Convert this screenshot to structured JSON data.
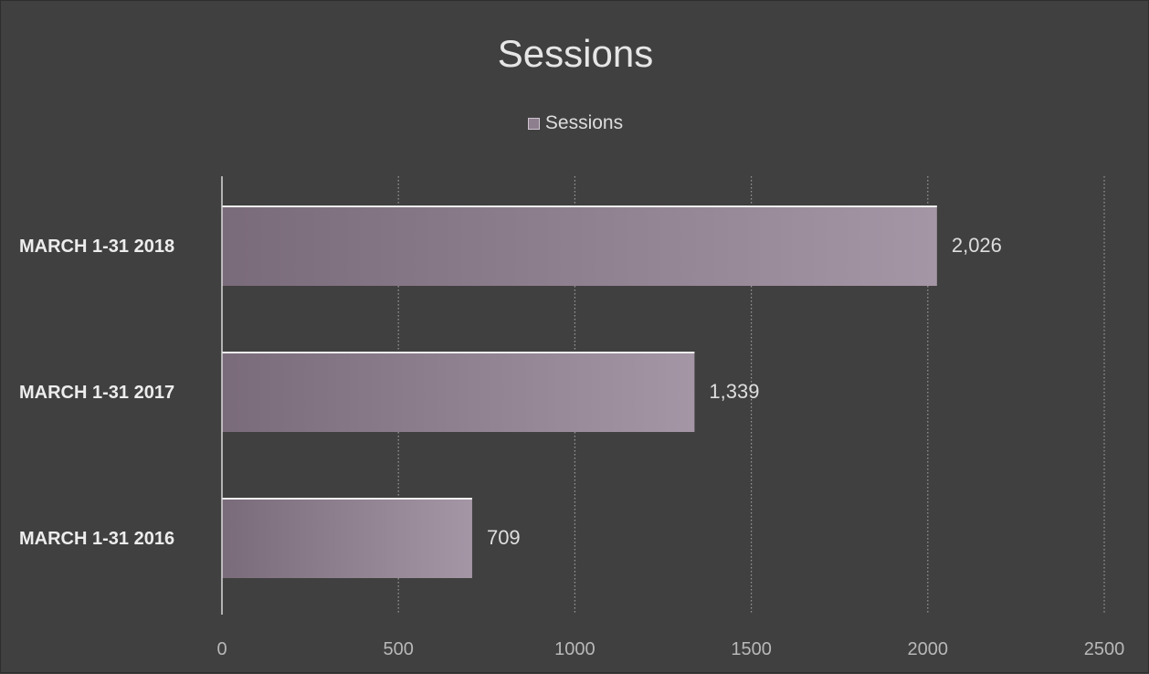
{
  "chart_data": {
    "type": "bar",
    "orientation": "horizontal",
    "title": "Sessions",
    "categories": [
      "MARCH 1-31 2018",
      "MARCH 1-31 2017",
      "MARCH 1-31 2016"
    ],
    "series": [
      {
        "name": "Sessions",
        "values": [
          2026,
          1339,
          709
        ],
        "value_labels": [
          "2,026",
          "1,339",
          "709"
        ]
      }
    ],
    "xlim": [
      0,
      2500
    ],
    "x_ticks": [
      "0",
      "500",
      "1000",
      "1500",
      "2000",
      "2500"
    ],
    "grid": "vertical dotted",
    "legend_position": "top-center",
    "colors": {
      "background": "#404040",
      "bar_start": "#7a6b7a",
      "bar_end": "#a496a5",
      "text": "#e6e6e6"
    }
  }
}
